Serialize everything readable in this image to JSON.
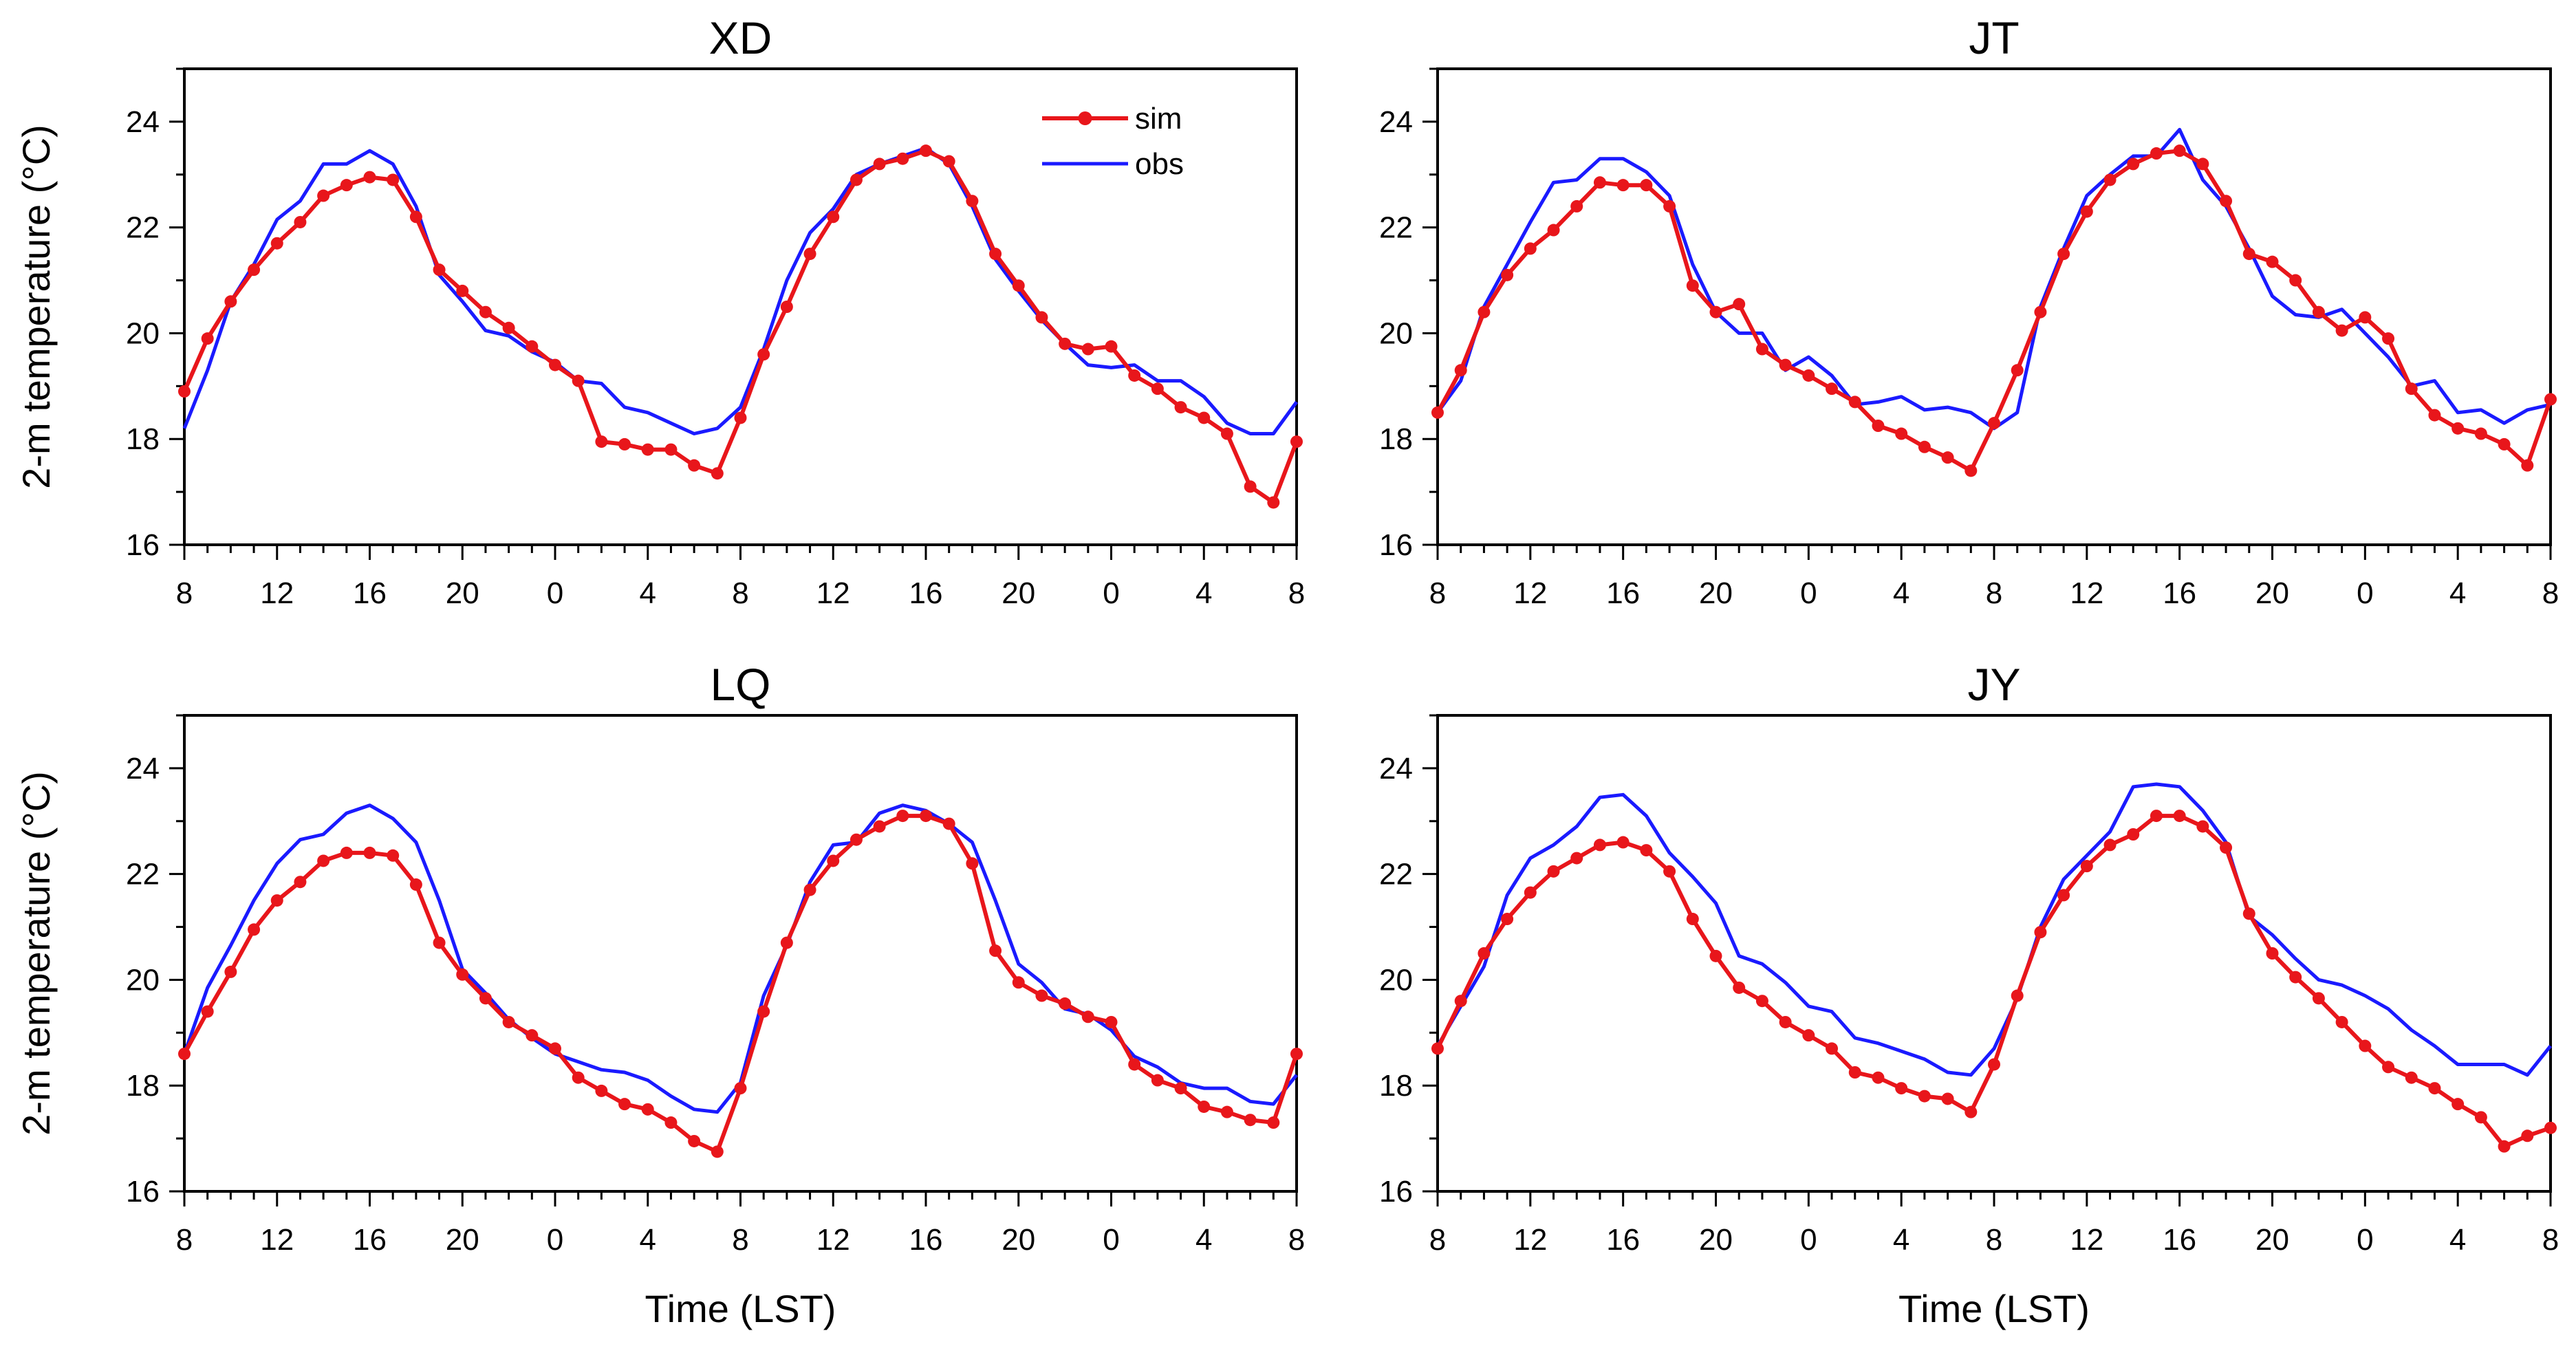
{
  "chart_data": {
    "type": "line",
    "x_tick_labels": [
      "8",
      "12",
      "16",
      "20",
      "0",
      "4",
      "8",
      "12",
      "16",
      "20",
      "0",
      "4",
      "8"
    ],
    "y_ticks": [
      16,
      18,
      20,
      22,
      24
    ],
    "ylim": [
      16,
      25
    ],
    "legend": {
      "placement": "top-center of first panel",
      "entries": [
        {
          "name": "sim",
          "color": "#e8161b",
          "marker": "filled-circle"
        },
        {
          "name": "obs",
          "color": "#1a1aff",
          "marker": "none"
        }
      ]
    },
    "panels": [
      {
        "title": "XD",
        "ylabel": "2-m temperature (°C)",
        "xlabel": "",
        "series": [
          {
            "name": "sim",
            "values": [
              18.9,
              19.9,
              20.6,
              21.2,
              21.7,
              22.1,
              22.6,
              22.8,
              22.95,
              22.9,
              22.2,
              21.2,
              20.8,
              20.4,
              20.1,
              19.75,
              19.4,
              19.1,
              17.95,
              17.9,
              17.8,
              17.8,
              17.5,
              17.35,
              18.4,
              19.6,
              20.5,
              21.5,
              22.2,
              22.9,
              23.2,
              23.3,
              23.45,
              23.25,
              22.5,
              21.5,
              20.9,
              20.3,
              19.8,
              19.7,
              19.75,
              19.2,
              18.95,
              18.6,
              18.4,
              18.1,
              17.1,
              16.8,
              17.95
            ]
          },
          {
            "name": "obs",
            "values": [
              18.2,
              19.3,
              20.6,
              21.3,
              22.15,
              22.5,
              23.2,
              23.2,
              23.45,
              23.2,
              22.4,
              21.1,
              20.6,
              20.05,
              19.95,
              19.65,
              19.45,
              19.1,
              19.05,
              18.6,
              18.5,
              18.3,
              18.1,
              18.2,
              18.6,
              19.7,
              21.0,
              21.9,
              22.35,
              23.0,
              23.2,
              23.35,
              23.5,
              23.2,
              22.4,
              21.4,
              20.8,
              20.25,
              19.8,
              19.4,
              19.35,
              19.4,
              19.1,
              19.1,
              18.8,
              18.3,
              18.1,
              18.1,
              18.7
            ]
          }
        ]
      },
      {
        "title": "JT",
        "ylabel": "",
        "xlabel": "",
        "series": [
          {
            "name": "sim",
            "values": [
              18.5,
              19.3,
              20.4,
              21.1,
              21.6,
              21.95,
              22.4,
              22.85,
              22.8,
              22.8,
              22.4,
              20.9,
              20.4,
              20.55,
              19.7,
              19.4,
              19.2,
              18.95,
              18.7,
              18.25,
              18.1,
              17.85,
              17.65,
              17.4,
              18.3,
              19.3,
              20.4,
              21.5,
              22.3,
              22.9,
              23.2,
              23.4,
              23.45,
              23.2,
              22.5,
              21.5,
              21.35,
              21.0,
              20.4,
              20.05,
              20.3,
              19.9,
              18.95,
              18.45,
              18.2,
              18.1,
              17.9,
              17.5,
              18.75
            ]
          },
          {
            "name": "obs",
            "values": [
              18.5,
              19.1,
              20.5,
              21.3,
              22.1,
              22.85,
              22.9,
              23.3,
              23.3,
              23.05,
              22.6,
              21.3,
              20.4,
              20.0,
              20.0,
              19.3,
              19.55,
              19.2,
              18.65,
              18.7,
              18.8,
              18.55,
              18.6,
              18.5,
              18.2,
              18.5,
              20.5,
              21.6,
              22.6,
              23.0,
              23.35,
              23.35,
              23.85,
              22.9,
              22.4,
              21.6,
              20.7,
              20.35,
              20.3,
              20.45,
              20.0,
              19.55,
              19.0,
              19.1,
              18.5,
              18.55,
              18.3,
              18.55,
              18.65
            ]
          }
        ]
      },
      {
        "title": "LQ",
        "ylabel": "2-m temperature (°C)",
        "xlabel": "Time (LST)",
        "series": [
          {
            "name": "sim",
            "values": [
              18.6,
              19.4,
              20.15,
              20.95,
              21.5,
              21.85,
              22.25,
              22.4,
              22.4,
              22.35,
              21.8,
              20.7,
              20.1,
              19.65,
              19.2,
              18.95,
              18.7,
              18.15,
              17.9,
              17.65,
              17.55,
              17.3,
              16.95,
              16.75,
              17.95,
              19.4,
              20.7,
              21.7,
              22.25,
              22.65,
              22.9,
              23.1,
              23.1,
              22.95,
              22.2,
              20.55,
              19.95,
              19.7,
              19.55,
              19.3,
              19.2,
              18.4,
              18.1,
              17.95,
              17.6,
              17.5,
              17.35,
              17.3,
              18.6
            ]
          },
          {
            "name": "obs",
            "values": [
              18.6,
              19.85,
              20.65,
              21.5,
              22.2,
              22.65,
              22.75,
              23.15,
              23.3,
              23.05,
              22.6,
              21.5,
              20.2,
              19.75,
              19.25,
              18.9,
              18.6,
              18.45,
              18.3,
              18.25,
              18.1,
              17.8,
              17.55,
              17.5,
              18.05,
              19.7,
              20.65,
              21.85,
              22.55,
              22.6,
              23.15,
              23.3,
              23.2,
              22.95,
              22.6,
              21.5,
              20.3,
              19.95,
              19.45,
              19.35,
              19.05,
              18.55,
              18.35,
              18.05,
              17.95,
              17.95,
              17.7,
              17.65,
              18.2
            ]
          }
        ]
      },
      {
        "title": "JY",
        "ylabel": "",
        "xlabel": "Time (LST)",
        "series": [
          {
            "name": "sim",
            "values": [
              18.7,
              19.6,
              20.5,
              21.15,
              21.65,
              22.05,
              22.3,
              22.55,
              22.6,
              22.45,
              22.05,
              21.15,
              20.45,
              19.85,
              19.6,
              19.2,
              18.95,
              18.7,
              18.25,
              18.15,
              17.95,
              17.8,
              17.75,
              17.5,
              18.4,
              19.7,
              20.9,
              21.6,
              22.15,
              22.55,
              22.75,
              23.1,
              23.1,
              22.9,
              22.5,
              21.25,
              20.5,
              20.05,
              19.65,
              19.2,
              18.75,
              18.35,
              18.15,
              17.95,
              17.65,
              17.4,
              16.85,
              17.05,
              17.2
            ]
          },
          {
            "name": "obs",
            "values": [
              18.75,
              19.5,
              20.25,
              21.6,
              22.3,
              22.55,
              22.9,
              23.45,
              23.5,
              23.1,
              22.4,
              21.95,
              21.45,
              20.45,
              20.3,
              19.95,
              19.5,
              19.4,
              18.9,
              18.8,
              18.65,
              18.5,
              18.25,
              18.2,
              18.7,
              19.65,
              21.0,
              21.9,
              22.35,
              22.8,
              23.65,
              23.7,
              23.65,
              23.2,
              22.6,
              21.2,
              20.85,
              20.4,
              20.0,
              19.9,
              19.7,
              19.45,
              19.05,
              18.75,
              18.4,
              18.4,
              18.4,
              18.2,
              18.75
            ]
          }
        ]
      }
    ]
  }
}
